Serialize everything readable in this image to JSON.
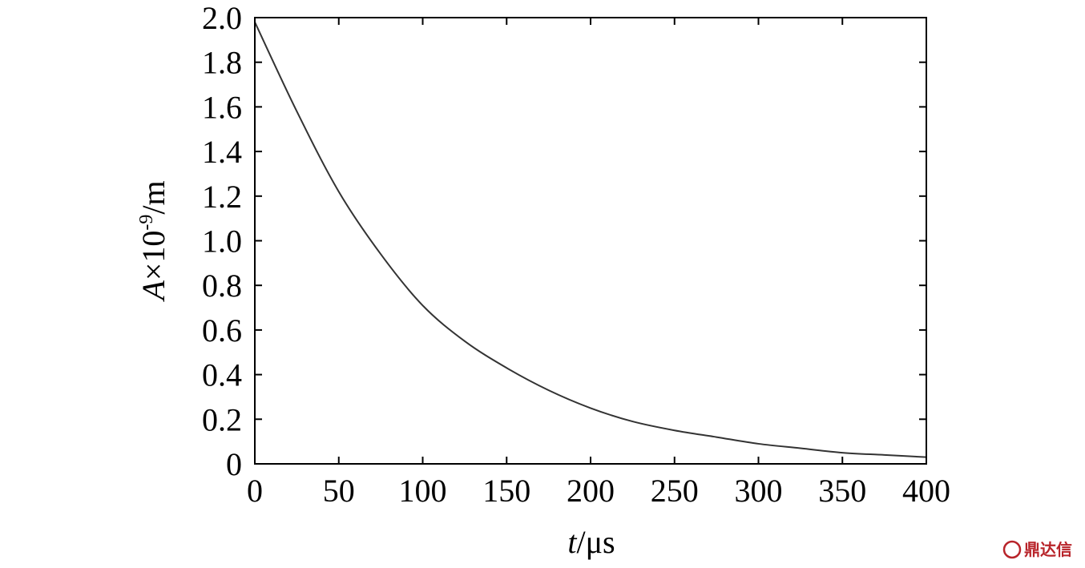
{
  "chart_data": {
    "type": "line",
    "x_axis": {
      "label_italic": "t",
      "label_rest": "/μs",
      "range": [
        0,
        400
      ],
      "ticks": [
        0,
        50,
        100,
        150,
        200,
        250,
        300,
        350,
        400
      ],
      "tick_labels": [
        "0",
        "50",
        "100",
        "150",
        "200",
        "250",
        "300",
        "350",
        "400"
      ]
    },
    "y_axis": {
      "label_italic": "A",
      "label_times": "×10",
      "label_exp": "-9",
      "label_unit": "/m",
      "range": [
        0,
        2.0
      ],
      "ticks": [
        0,
        0.2,
        0.4,
        0.6,
        0.8,
        1.0,
        1.2,
        1.4,
        1.6,
        1.8,
        2.0
      ],
      "tick_labels": [
        "0",
        "0.2",
        "0.4",
        "0.6",
        "0.8",
        "1.0",
        "1.2",
        "1.4",
        "1.6",
        "1.8",
        "2.0"
      ]
    },
    "grid": false,
    "series": [
      {
        "color": "#333333",
        "x": [
          0,
          25,
          50,
          75,
          100,
          125,
          150,
          175,
          200,
          225,
          250,
          275,
          300,
          325,
          350,
          375,
          400
        ],
        "y": [
          1.98,
          1.58,
          1.22,
          0.94,
          0.71,
          0.55,
          0.43,
          0.33,
          0.25,
          0.19,
          0.15,
          0.12,
          0.09,
          0.07,
          0.05,
          0.04,
          0.03
        ]
      }
    ]
  },
  "watermark": {
    "text": "鼎达信",
    "color": "#b8242a"
  }
}
